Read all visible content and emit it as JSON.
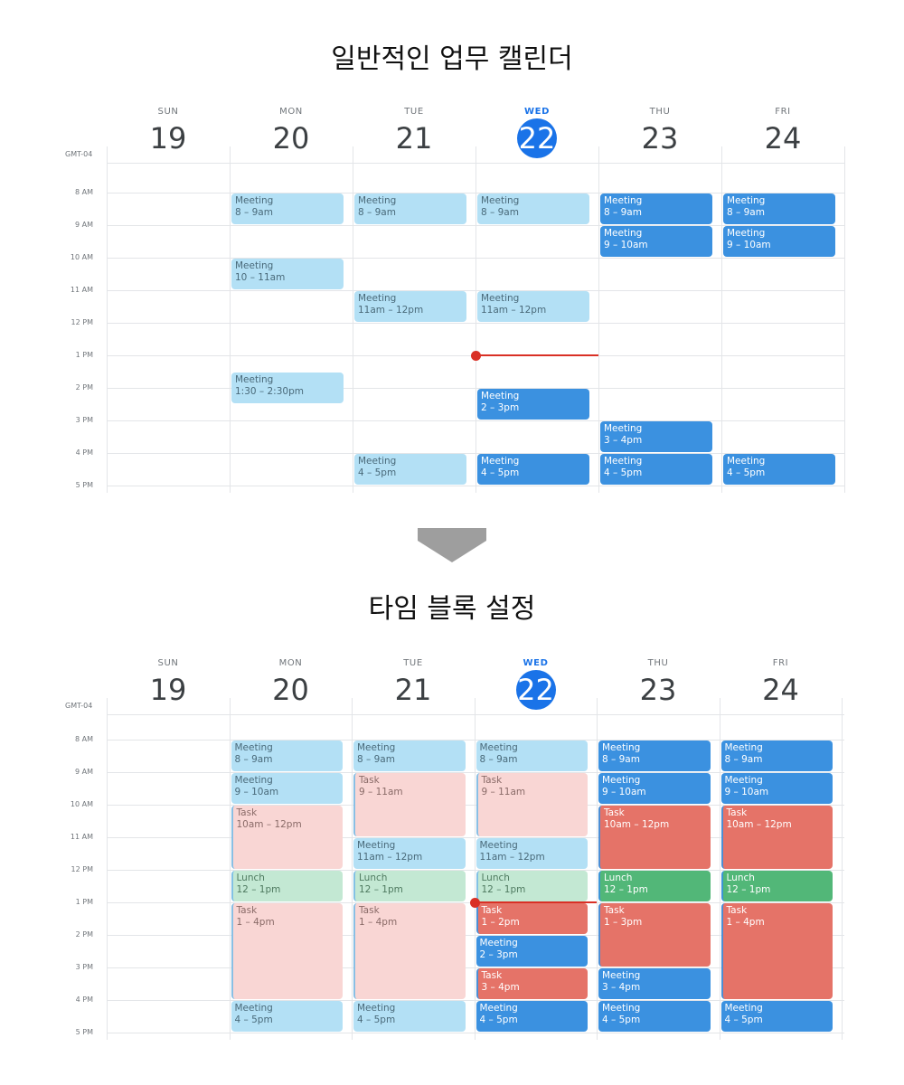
{
  "titles": {
    "top": "일반적인 업무 캘린더",
    "bottom": "타임 블록 설정"
  },
  "timezone": "GMT-04",
  "days": [
    {
      "dow": "SUN",
      "date": "19"
    },
    {
      "dow": "MON",
      "date": "20"
    },
    {
      "dow": "TUE",
      "date": "21"
    },
    {
      "dow": "WED",
      "date": "22",
      "today": true
    },
    {
      "dow": "THU",
      "date": "23"
    },
    {
      "dow": "FRI",
      "date": "24"
    }
  ],
  "hours": [
    "8 AM",
    "9 AM",
    "10 AM",
    "11 AM",
    "12 PM",
    "1 PM",
    "2 PM",
    "3 PM",
    "4 PM",
    "5 PM"
  ],
  "current_time_hour": 13,
  "colors": {
    "meeting_light": "#b3e0f5",
    "meeting_dark": "#3b91e0",
    "task_light": "#f9d6d4",
    "task_dark": "#e57368",
    "lunch_light": "#c3e8d3",
    "lunch_dark": "#52b778",
    "today": "#1a73e8",
    "now_line": "#d93025"
  },
  "calendars": {
    "top": {
      "events": [
        {
          "day": 1,
          "start": 8,
          "end": 9,
          "title": "Meeting",
          "time": "8 – 9am",
          "kind": "meeting",
          "shade": "light"
        },
        {
          "day": 1,
          "start": 10,
          "end": 11,
          "title": "Meeting",
          "time": "10 – 11am",
          "kind": "meeting",
          "shade": "light"
        },
        {
          "day": 1,
          "start": 13.5,
          "end": 14.5,
          "title": "Meeting",
          "time": "1:30 – 2:30pm",
          "kind": "meeting",
          "shade": "light"
        },
        {
          "day": 2,
          "start": 8,
          "end": 9,
          "title": "Meeting",
          "time": "8 – 9am",
          "kind": "meeting",
          "shade": "light"
        },
        {
          "day": 2,
          "start": 11,
          "end": 12,
          "title": "Meeting",
          "time": "11am – 12pm",
          "kind": "meeting",
          "shade": "light"
        },
        {
          "day": 2,
          "start": 16,
          "end": 17,
          "title": "Meeting",
          "time": "4 – 5pm",
          "kind": "meeting",
          "shade": "light"
        },
        {
          "day": 3,
          "start": 8,
          "end": 9,
          "title": "Meeting",
          "time": "8 – 9am",
          "kind": "meeting",
          "shade": "light"
        },
        {
          "day": 3,
          "start": 11,
          "end": 12,
          "title": "Meeting",
          "time": "11am – 12pm",
          "kind": "meeting",
          "shade": "light"
        },
        {
          "day": 3,
          "start": 14,
          "end": 15,
          "title": "Meeting",
          "time": "2 – 3pm",
          "kind": "meeting",
          "shade": "dark"
        },
        {
          "day": 3,
          "start": 16,
          "end": 17,
          "title": "Meeting",
          "time": "4 – 5pm",
          "kind": "meeting",
          "shade": "dark"
        },
        {
          "day": 4,
          "start": 8,
          "end": 9,
          "title": "Meeting",
          "time": "8 – 9am",
          "kind": "meeting",
          "shade": "dark"
        },
        {
          "day": 4,
          "start": 9,
          "end": 10,
          "title": "Meeting",
          "time": "9 – 10am",
          "kind": "meeting",
          "shade": "dark"
        },
        {
          "day": 4,
          "start": 15,
          "end": 16,
          "title": "Meeting",
          "time": "3 – 4pm",
          "kind": "meeting",
          "shade": "dark"
        },
        {
          "day": 4,
          "start": 16,
          "end": 17,
          "title": "Meeting",
          "time": "4 – 5pm",
          "kind": "meeting",
          "shade": "dark"
        },
        {
          "day": 5,
          "start": 8,
          "end": 9,
          "title": "Meeting",
          "time": "8 – 9am",
          "kind": "meeting",
          "shade": "dark"
        },
        {
          "day": 5,
          "start": 9,
          "end": 10,
          "title": "Meeting",
          "time": "9 – 10am",
          "kind": "meeting",
          "shade": "dark"
        },
        {
          "day": 5,
          "start": 16,
          "end": 17,
          "title": "Meeting",
          "time": "4 – 5pm",
          "kind": "meeting",
          "shade": "dark"
        }
      ]
    },
    "bottom": {
      "events": [
        {
          "day": 1,
          "start": 8,
          "end": 9,
          "title": "Meeting",
          "time": "8 – 9am",
          "kind": "meeting",
          "shade": "light"
        },
        {
          "day": 1,
          "start": 9,
          "end": 10,
          "title": "Meeting",
          "time": "9 – 10am",
          "kind": "meeting",
          "shade": "light"
        },
        {
          "day": 1,
          "start": 10,
          "end": 12,
          "title": "Task",
          "time": "10am – 12pm",
          "kind": "task",
          "shade": "light"
        },
        {
          "day": 1,
          "start": 12,
          "end": 13,
          "title": "Lunch",
          "time": "12 – 1pm",
          "kind": "lunch",
          "shade": "light"
        },
        {
          "day": 1,
          "start": 13,
          "end": 16,
          "title": "Task",
          "time": "1 – 4pm",
          "kind": "task",
          "shade": "light"
        },
        {
          "day": 1,
          "start": 16,
          "end": 17,
          "title": "Meeting",
          "time": "4 – 5pm",
          "kind": "meeting",
          "shade": "light"
        },
        {
          "day": 2,
          "start": 8,
          "end": 9,
          "title": "Meeting",
          "time": "8 – 9am",
          "kind": "meeting",
          "shade": "light"
        },
        {
          "day": 2,
          "start": 9,
          "end": 11,
          "title": "Task",
          "time": "9 – 11am",
          "kind": "task",
          "shade": "light"
        },
        {
          "day": 2,
          "start": 11,
          "end": 12,
          "title": "Meeting",
          "time": "11am – 12pm",
          "kind": "meeting",
          "shade": "light"
        },
        {
          "day": 2,
          "start": 12,
          "end": 13,
          "title": "Lunch",
          "time": "12 – 1pm",
          "kind": "lunch",
          "shade": "light"
        },
        {
          "day": 2,
          "start": 13,
          "end": 16,
          "title": "Task",
          "time": "1 – 4pm",
          "kind": "task",
          "shade": "light"
        },
        {
          "day": 2,
          "start": 16,
          "end": 17,
          "title": "Meeting",
          "time": "4 – 5pm",
          "kind": "meeting",
          "shade": "light"
        },
        {
          "day": 3,
          "start": 8,
          "end": 9,
          "title": "Meeting",
          "time": "8 – 9am",
          "kind": "meeting",
          "shade": "light"
        },
        {
          "day": 3,
          "start": 9,
          "end": 11,
          "title": "Task",
          "time": "9 – 11am",
          "kind": "task",
          "shade": "light"
        },
        {
          "day": 3,
          "start": 11,
          "end": 12,
          "title": "Meeting",
          "time": "11am – 12pm",
          "kind": "meeting",
          "shade": "light"
        },
        {
          "day": 3,
          "start": 12,
          "end": 13,
          "title": "Lunch",
          "time": "12 – 1pm",
          "kind": "lunch",
          "shade": "light"
        },
        {
          "day": 3,
          "start": 13,
          "end": 14,
          "title": "Task",
          "time": "1 – 2pm",
          "kind": "task",
          "shade": "dark"
        },
        {
          "day": 3,
          "start": 14,
          "end": 15,
          "title": "Meeting",
          "time": "2 – 3pm",
          "kind": "meeting",
          "shade": "dark"
        },
        {
          "day": 3,
          "start": 15,
          "end": 16,
          "title": "Task",
          "time": "3 – 4pm",
          "kind": "task",
          "shade": "dark"
        },
        {
          "day": 3,
          "start": 16,
          "end": 17,
          "title": "Meeting",
          "time": "4 – 5pm",
          "kind": "meeting",
          "shade": "dark"
        },
        {
          "day": 4,
          "start": 8,
          "end": 9,
          "title": "Meeting",
          "time": "8 – 9am",
          "kind": "meeting",
          "shade": "dark"
        },
        {
          "day": 4,
          "start": 9,
          "end": 10,
          "title": "Meeting",
          "time": "9 – 10am",
          "kind": "meeting",
          "shade": "dark"
        },
        {
          "day": 4,
          "start": 10,
          "end": 12,
          "title": "Task",
          "time": "10am – 12pm",
          "kind": "task",
          "shade": "dark"
        },
        {
          "day": 4,
          "start": 12,
          "end": 13,
          "title": "Lunch",
          "time": "12 – 1pm",
          "kind": "lunch",
          "shade": "dark"
        },
        {
          "day": 4,
          "start": 13,
          "end": 15,
          "title": "Task",
          "time": "1 – 3pm",
          "kind": "task",
          "shade": "dark"
        },
        {
          "day": 4,
          "start": 15,
          "end": 16,
          "title": "Meeting",
          "time": "3 – 4pm",
          "kind": "meeting",
          "shade": "dark"
        },
        {
          "day": 4,
          "start": 16,
          "end": 17,
          "title": "Meeting",
          "time": "4 – 5pm",
          "kind": "meeting",
          "shade": "dark"
        },
        {
          "day": 5,
          "start": 8,
          "end": 9,
          "title": "Meeting",
          "time": "8 – 9am",
          "kind": "meeting",
          "shade": "dark"
        },
        {
          "day": 5,
          "start": 9,
          "end": 10,
          "title": "Meeting",
          "time": "9 – 10am",
          "kind": "meeting",
          "shade": "dark"
        },
        {
          "day": 5,
          "start": 10,
          "end": 12,
          "title": "Task",
          "time": "10am – 12pm",
          "kind": "task",
          "shade": "dark"
        },
        {
          "day": 5,
          "start": 12,
          "end": 13,
          "title": "Lunch",
          "time": "12 – 1pm",
          "kind": "lunch",
          "shade": "dark"
        },
        {
          "day": 5,
          "start": 13,
          "end": 16,
          "title": "Task",
          "time": "1 – 4pm",
          "kind": "task",
          "shade": "dark"
        },
        {
          "day": 5,
          "start": 16,
          "end": 17,
          "title": "Meeting",
          "time": "4 – 5pm",
          "kind": "meeting",
          "shade": "dark"
        }
      ]
    }
  }
}
